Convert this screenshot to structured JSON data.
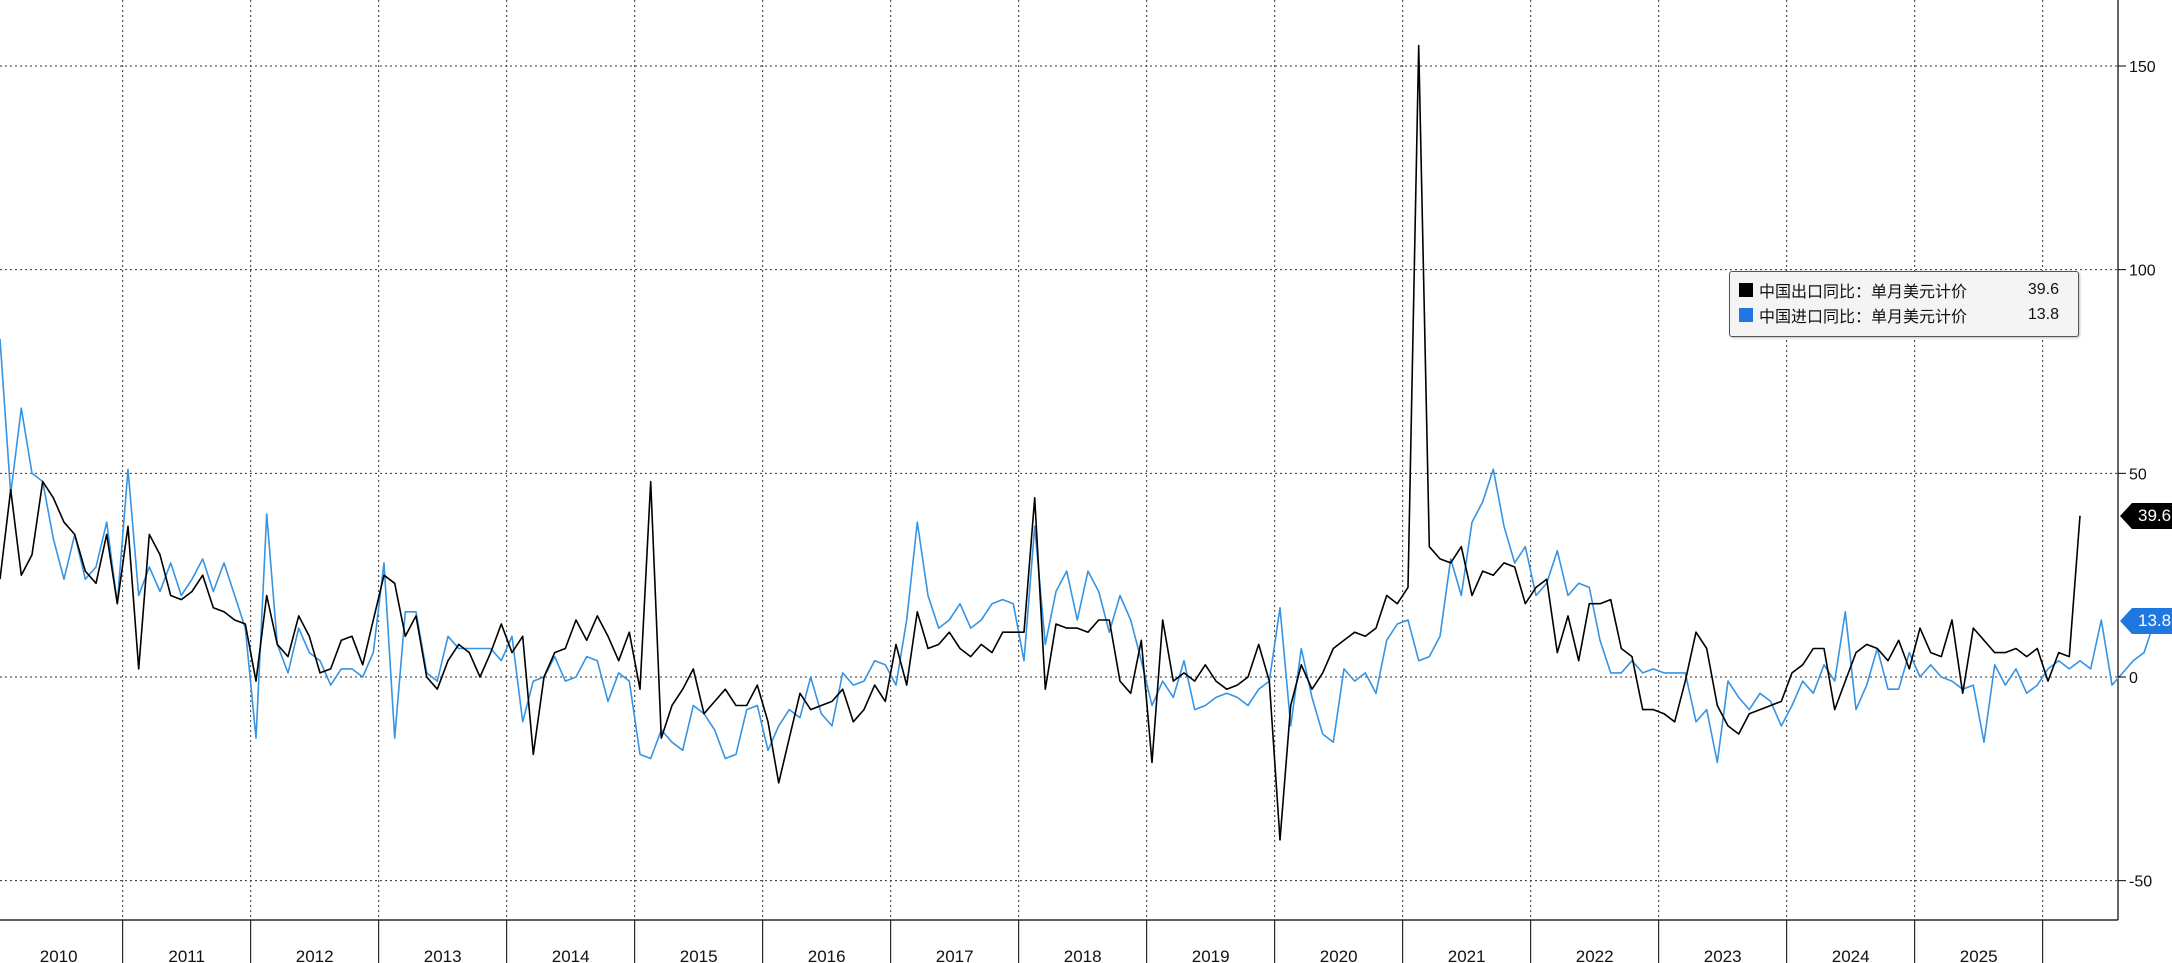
{
  "chart_data": {
    "type": "line",
    "y_ticks": [
      150,
      100,
      50,
      0,
      -50
    ],
    "ylim": [
      -60,
      165
    ],
    "x_range": [
      "2010-01",
      "2025-10"
    ],
    "x_year_labels": [
      "2010",
      "2011",
      "2012",
      "2013",
      "2014",
      "2015",
      "2016",
      "2017",
      "2018",
      "2019",
      "2020",
      "2021",
      "2022",
      "2023",
      "2024",
      "2025"
    ],
    "grid": true,
    "legend_position": "right, upper-middle",
    "series": [
      {
        "name": "中国出口同比：单月美元计价",
        "color": "#000000",
        "last_value": "39.6",
        "values": [
          24,
          46,
          25,
          30,
          48,
          44,
          38,
          35,
          26,
          23,
          35,
          18,
          37,
          2,
          35,
          30,
          20,
          19,
          21,
          25,
          17,
          16,
          14,
          13,
          -1,
          20,
          8,
          5,
          15,
          10,
          1,
          2,
          9,
          10,
          3,
          14,
          25,
          23,
          10,
          15,
          0,
          -3,
          4,
          8,
          6,
          0,
          6,
          13,
          6,
          10,
          -19,
          0,
          6,
          7,
          14,
          9,
          15,
          10,
          4,
          11,
          -3,
          48,
          -15,
          -7,
          -3,
          2,
          -9,
          -6,
          -3,
          -7,
          -7,
          -2,
          -11,
          -26,
          -15,
          -4,
          -8,
          -7,
          -6,
          -3,
          -11,
          -8,
          -2,
          -6,
          8,
          -2,
          16,
          7,
          8,
          11,
          7,
          5,
          8,
          6,
          11,
          11,
          11,
          44,
          -3,
          13,
          12,
          12,
          11,
          14,
          14,
          -1,
          -4,
          9,
          -21,
          14,
          -1,
          1,
          -1,
          3,
          -1,
          -3,
          -2,
          0,
          8,
          -1,
          -40,
          -7,
          3,
          -3,
          1,
          7,
          9,
          11,
          10,
          12,
          20,
          18,
          22,
          155,
          32,
          29,
          28,
          32,
          20,
          26,
          25,
          28,
          27,
          18,
          22,
          24,
          6,
          15,
          4,
          18,
          18,
          19,
          7,
          5,
          -8,
          -8,
          -9,
          -11,
          -1,
          11,
          7,
          -7,
          -12,
          -14,
          -9,
          -8,
          -7,
          -6,
          1,
          3,
          7,
          7,
          -8,
          -1,
          6,
          8,
          7,
          4,
          9,
          2,
          12,
          6,
          5,
          14,
          -4,
          12,
          9,
          6,
          6,
          7,
          5,
          7,
          -1,
          6,
          5,
          39.6
        ]
      },
      {
        "name": "中国进口同比：单月美元计价",
        "color": "#3794e3",
        "last_value": "13.8",
        "values": [
          83,
          45,
          66,
          50,
          48,
          34,
          24,
          35,
          24,
          27,
          38,
          18,
          51,
          20,
          27,
          21,
          28,
          20,
          24,
          29,
          21,
          28,
          20,
          12,
          -15,
          40,
          8,
          1,
          12,
          6,
          4,
          -2,
          2,
          2,
          0,
          6,
          28,
          -15,
          16,
          16,
          1,
          -1,
          10,
          7,
          7,
          7,
          7,
          4,
          10,
          -11,
          -1,
          0,
          5,
          -1,
          0,
          5,
          4,
          -6,
          1,
          -1,
          -19,
          -20,
          -13,
          -16,
          -18,
          -7,
          -9,
          -13,
          -20,
          -19,
          -8,
          -7,
          -18,
          -12,
          -8,
          -10,
          0,
          -9,
          -12,
          1,
          -2,
          -1,
          4,
          3,
          -2,
          14,
          38,
          20,
          12,
          14,
          18,
          12,
          14,
          18,
          19,
          18,
          4,
          37,
          8,
          21,
          26,
          14,
          26,
          21,
          11,
          20,
          14,
          4,
          -7,
          -1,
          -5,
          4,
          -8,
          -7,
          -5,
          -4,
          -5,
          -7,
          -3,
          -1,
          17,
          -12,
          7,
          -5,
          -14,
          -16,
          2,
          -1,
          1,
          -4,
          9,
          13,
          14,
          4,
          5,
          10,
          29,
          20,
          38,
          43,
          51,
          37,
          28,
          32,
          20,
          23,
          31,
          20,
          23,
          22,
          9,
          1,
          1,
          4,
          1,
          2,
          1,
          1,
          1,
          -11,
          -8,
          -21,
          -1,
          -5,
          -8,
          -4,
          -6,
          -12,
          -7,
          -1,
          -4,
          3,
          -1,
          16,
          -8,
          -2,
          7,
          -3,
          -3,
          6,
          0,
          3,
          0,
          -1,
          -3,
          -2,
          -16,
          3,
          -2,
          2,
          -4,
          -2,
          2,
          4,
          2,
          4,
          2,
          14,
          -2,
          1,
          4,
          6,
          13.8
        ]
      }
    ]
  },
  "legend": {
    "items": [
      {
        "label": "中国出口同比：单月美元计价",
        "value": "39.6",
        "color": "#000000"
      },
      {
        "label": "中国进口同比：单月美元计价",
        "value": "13.8",
        "color": "#1f78e0"
      }
    ]
  },
  "last_labels": {
    "export": {
      "text": "39.6",
      "bg": "#000000",
      "fg": "#ffffff"
    },
    "import": {
      "text": "13.8",
      "bg": "#1f78e0",
      "fg": "#ffffff"
    }
  }
}
